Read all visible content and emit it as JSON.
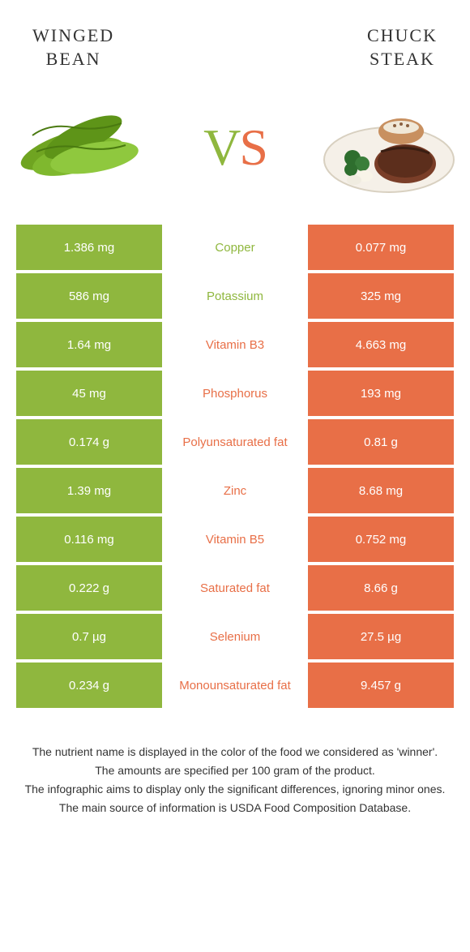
{
  "colors": {
    "left": "#8fb73e",
    "right": "#e86f47",
    "bg": "#ffffff",
    "text": "#333333"
  },
  "header": {
    "left_title": "Winged\nbean",
    "right_title": "Chuck\nsteak"
  },
  "hero": {
    "vs_v": "V",
    "vs_s": "S"
  },
  "rows": [
    {
      "left": "1.386 mg",
      "label": "Copper",
      "right": "0.077 mg",
      "winner": "left"
    },
    {
      "left": "586 mg",
      "label": "Potassium",
      "right": "325 mg",
      "winner": "left"
    },
    {
      "left": "1.64 mg",
      "label": "Vitamin B3",
      "right": "4.663 mg",
      "winner": "right"
    },
    {
      "left": "45 mg",
      "label": "Phosphorus",
      "right": "193 mg",
      "winner": "right"
    },
    {
      "left": "0.174 g",
      "label": "Polyunsaturated fat",
      "right": "0.81 g",
      "winner": "right"
    },
    {
      "left": "1.39 mg",
      "label": "Zinc",
      "right": "8.68 mg",
      "winner": "right"
    },
    {
      "left": "0.116 mg",
      "label": "Vitamin B5",
      "right": "0.752 mg",
      "winner": "right"
    },
    {
      "left": "0.222 g",
      "label": "Saturated fat",
      "right": "8.66 g",
      "winner": "right"
    },
    {
      "left": "0.7 µg",
      "label": "Selenium",
      "right": "27.5 µg",
      "winner": "right"
    },
    {
      "left": "0.234 g",
      "label": "Monounsaturated fat",
      "right": "9.457 g",
      "winner": "right"
    }
  ],
  "footer": {
    "line1": "The nutrient name is displayed in the color of the food we considered as 'winner'.",
    "line2": "The amounts are specified per 100 gram of the product.",
    "line3": "The infographic aims to display only the significant differences, ignoring minor ones.",
    "line4": "The main source of information is USDA Food Composition Database."
  }
}
